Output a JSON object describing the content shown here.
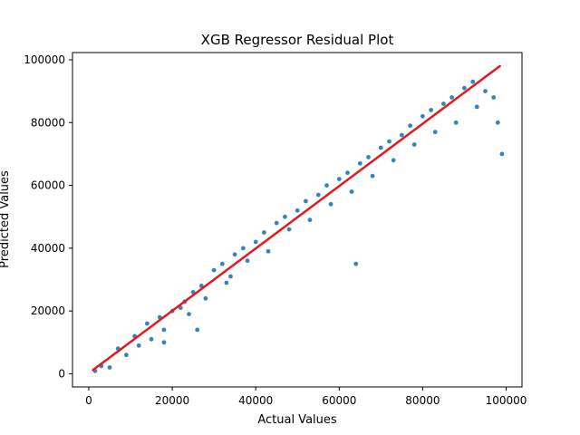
{
  "chart_data": {
    "type": "scatter",
    "title": "XGB Regressor Residual Plot",
    "xlabel": "Actual Values",
    "ylabel": "Predicted Values",
    "xlim": [
      -3900,
      103800
    ],
    "ylim": [
      -4200,
      102300
    ],
    "xticks": [
      0,
      20000,
      40000,
      60000,
      80000,
      100000
    ],
    "xtick_labels": [
      "0",
      "20000",
      "40000",
      "60000",
      "80000",
      "100000"
    ],
    "yticks": [
      0,
      20000,
      40000,
      60000,
      80000,
      100000
    ],
    "ytick_labels": [
      "0",
      "20000",
      "40000",
      "60000",
      "80000",
      "100000"
    ],
    "grid": false,
    "legend": "none",
    "series": [
      {
        "kind": "scatter",
        "color": "#1f77b4",
        "points": [
          [
            1500,
            900
          ],
          [
            3000,
            2500
          ],
          [
            5000,
            2000
          ],
          [
            7000,
            8000
          ],
          [
            9000,
            6000
          ],
          [
            11000,
            12000
          ],
          [
            12000,
            9000
          ],
          [
            14000,
            16000
          ],
          [
            15000,
            11000
          ],
          [
            17000,
            18000
          ],
          [
            18000,
            14000
          ],
          [
            20000,
            20000
          ],
          [
            22000,
            21000
          ],
          [
            24000,
            19000
          ],
          [
            25000,
            26000
          ],
          [
            27000,
            28000
          ],
          [
            28000,
            24000
          ],
          [
            30000,
            33000
          ],
          [
            32000,
            35000
          ],
          [
            33000,
            29000
          ],
          [
            35000,
            38000
          ],
          [
            37000,
            40000
          ],
          [
            38000,
            36000
          ],
          [
            40000,
            42000
          ],
          [
            42000,
            45000
          ],
          [
            43000,
            39000
          ],
          [
            45000,
            48000
          ],
          [
            47000,
            50000
          ],
          [
            48000,
            46000
          ],
          [
            50000,
            52000
          ],
          [
            52000,
            55000
          ],
          [
            53000,
            49000
          ],
          [
            55000,
            57000
          ],
          [
            57000,
            60000
          ],
          [
            58000,
            54000
          ],
          [
            60000,
            62000
          ],
          [
            62000,
            64000
          ],
          [
            63000,
            58000
          ],
          [
            65000,
            67000
          ],
          [
            67000,
            69000
          ],
          [
            68000,
            63000
          ],
          [
            70000,
            72000
          ],
          [
            72000,
            74000
          ],
          [
            73000,
            68000
          ],
          [
            75000,
            76000
          ],
          [
            77000,
            79000
          ],
          [
            78000,
            73000
          ],
          [
            80000,
            82000
          ],
          [
            82000,
            84000
          ],
          [
            83000,
            77000
          ],
          [
            85000,
            86000
          ],
          [
            87000,
            88000
          ],
          [
            88000,
            80000
          ],
          [
            90000,
            91000
          ],
          [
            92000,
            93000
          ],
          [
            93000,
            85000
          ],
          [
            95000,
            90000
          ],
          [
            97000,
            88000
          ],
          [
            98000,
            80000
          ],
          [
            99000,
            70000
          ],
          [
            64000,
            35000
          ],
          [
            34000,
            31000
          ],
          [
            18000,
            10000
          ],
          [
            23000,
            23000
          ],
          [
            26000,
            14000
          ]
        ]
      },
      {
        "kind": "line",
        "color": "#e31a1c",
        "x": [
          1000,
          98500
        ],
        "y": [
          1200,
          98000
        ]
      }
    ]
  }
}
